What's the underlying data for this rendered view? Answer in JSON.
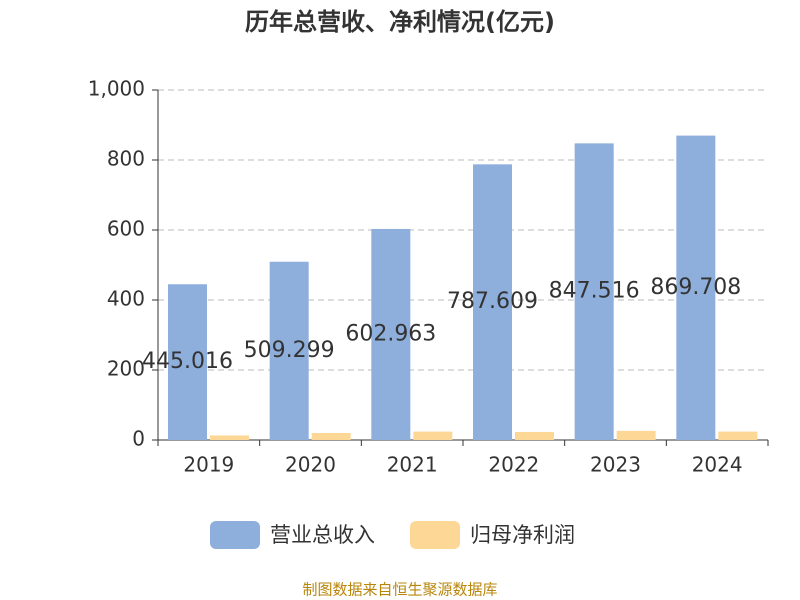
{
  "chart_data": {
    "type": "bar",
    "title": "历年总营收、净利情况(亿元)",
    "categories": [
      "2019",
      "2020",
      "2021",
      "2022",
      "2023",
      "2024"
    ],
    "series": [
      {
        "name": "营业总收入",
        "color": "#8eaedb",
        "values": [
          445.016,
          509.299,
          602.963,
          787.609,
          847.516,
          869.708
        ]
      },
      {
        "name": "归母净利润",
        "color": "#fdd795",
        "values": [
          13,
          20,
          24,
          23,
          26,
          24
        ]
      }
    ],
    "ylim": [
      0,
      1000
    ],
    "yticks": [
      0,
      200,
      400,
      600,
      800,
      {
        "value": 1000,
        "label": "1,000"
      }
    ],
    "grid": true,
    "legend": "bottom",
    "source": "制图数据来自恒生聚源数据库"
  }
}
